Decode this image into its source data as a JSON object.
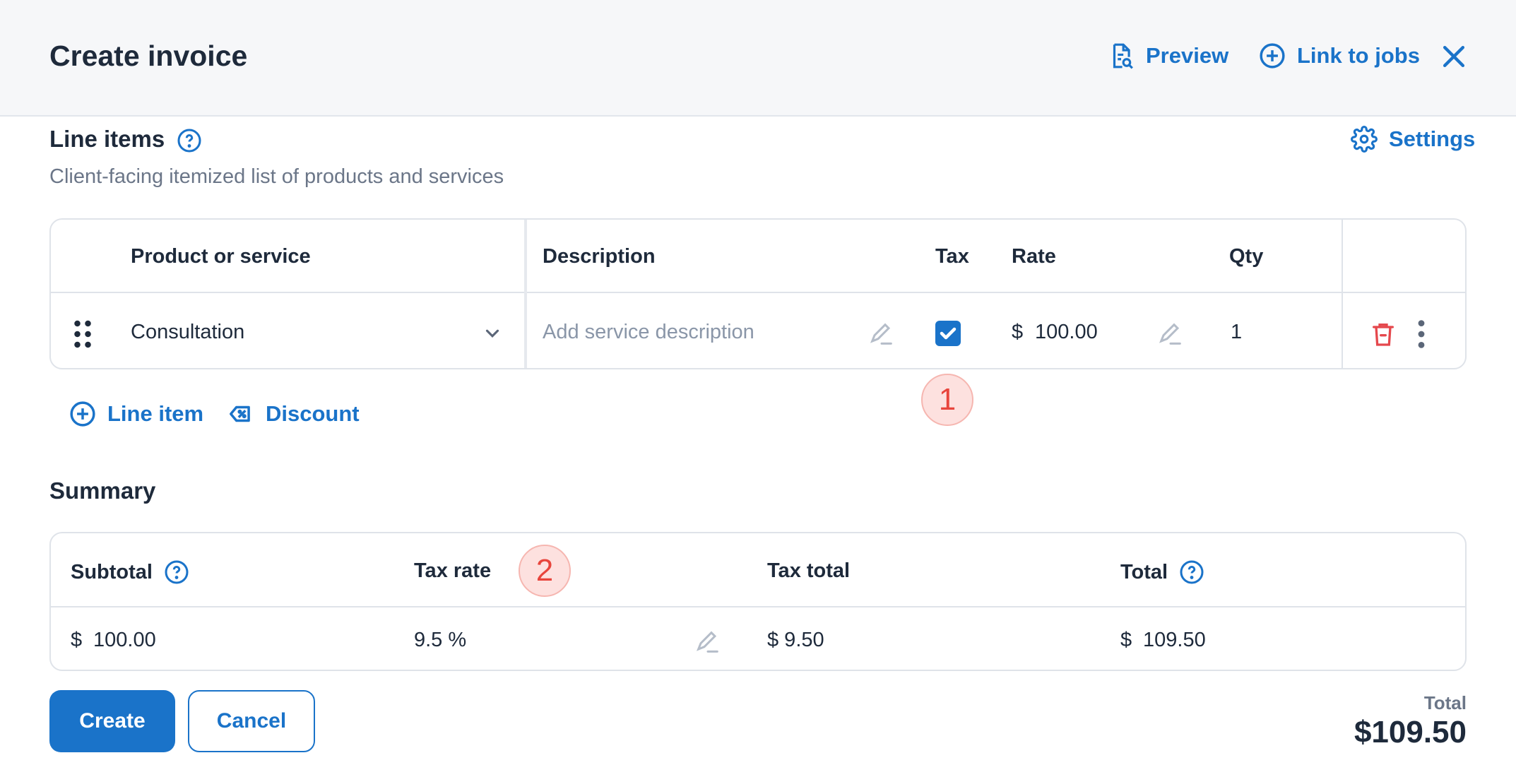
{
  "header": {
    "title": "Create invoice",
    "preview_label": "Preview",
    "link_jobs_label": "Link to jobs"
  },
  "line_items": {
    "title": "Line items",
    "subtitle": "Client-facing itemized list of products and services",
    "settings_label": "Settings",
    "columns": {
      "product": "Product or service",
      "description": "Description",
      "tax": "Tax",
      "rate": "Rate",
      "qty": "Qty"
    },
    "rows": [
      {
        "product": "Consultation",
        "description_placeholder": "Add service description",
        "tax_checked": true,
        "currency": "$",
        "rate": "100.00",
        "qty": "1"
      }
    ],
    "add_line_item_label": "Line item",
    "discount_label": "Discount"
  },
  "markers": [
    "1",
    "2"
  ],
  "summary": {
    "title": "Summary",
    "subtitle_header": "Subtotal",
    "tax_rate_header": "Tax rate",
    "tax_total_header": "Tax total",
    "total_header": "Total",
    "subtotal_currency": "$",
    "subtotal_value": "100.00",
    "tax_rate_value": "9.5 %",
    "tax_total_value": "$ 9.50",
    "total_currency": "$",
    "total_value": "109.50"
  },
  "footer": {
    "create_label": "Create",
    "cancel_label": "Cancel",
    "total_label": "Total",
    "total_amount": "$109.50"
  },
  "colors": {
    "accent": "#1a73c9",
    "danger": "#e5484d",
    "marker_bg": "#fde1df",
    "marker_text": "#e8453c"
  }
}
